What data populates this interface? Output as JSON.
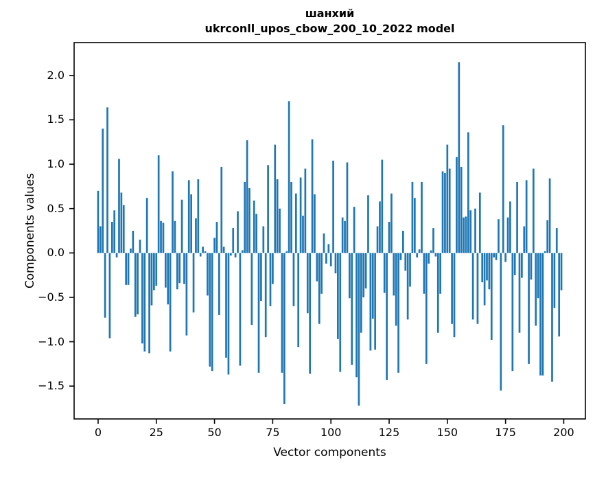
{
  "title_line1": "шанхий",
  "title_line2": "ukrconll_upos_cbow_200_10_2022 model",
  "xlabel": "Vector components",
  "ylabel": "Components values",
  "chart_data": {
    "type": "bar",
    "title": "шанхий\nukrconll_upos_cbow_200_10_2022 model",
    "xlabel": "Vector components",
    "ylabel": "Components values",
    "bar_color": "#1f77b4",
    "axis_color": "#000000",
    "grid": false,
    "legend": null,
    "x_ticks": [
      0,
      25,
      50,
      75,
      100,
      125,
      150,
      175,
      200
    ],
    "y_ticks": [
      -1.5,
      -1.0,
      -0.5,
      0.0,
      0.5,
      1.0,
      1.5,
      2.0
    ],
    "xlim": [
      -10.3,
      209.3
    ],
    "ylim": [
      -1.87,
      2.37
    ],
    "bar_width": 0.8,
    "values": [
      0.7,
      0.3,
      1.4,
      -0.73,
      1.64,
      -0.96,
      0.35,
      0.48,
      -0.05,
      1.06,
      0.68,
      0.54,
      -0.36,
      -0.36,
      0.05,
      0.25,
      -0.72,
      -0.69,
      0.15,
      -1.02,
      -1.11,
      0.62,
      -1.13,
      -0.59,
      -0.42,
      -0.37,
      1.1,
      0.36,
      0.34,
      -0.39,
      -0.58,
      -1.11,
      0.92,
      0.36,
      -0.41,
      -0.34,
      0.6,
      -0.35,
      -0.93,
      0.82,
      0.66,
      -0.67,
      0.39,
      0.83,
      -0.04,
      0.07,
      0.02,
      -0.48,
      -1.28,
      -1.33,
      0.17,
      0.35,
      -0.7,
      0.97,
      0.07,
      -1.18,
      -1.37,
      -0.03,
      0.28,
      -0.05,
      0.47,
      -1.27,
      0.03,
      0.8,
      1.27,
      0.73,
      -0.81,
      0.59,
      0.44,
      -1.35,
      -0.54,
      0.3,
      -0.95,
      0.99,
      -0.6,
      -0.35,
      1.22,
      0.83,
      0.5,
      -1.35,
      -1.7,
      0.02,
      1.71,
      0.8,
      -0.6,
      0.67,
      -1.06,
      0.85,
      0.42,
      0.95,
      -0.68,
      -1.36,
      1.28,
      0.66,
      -0.32,
      -0.8,
      -0.46,
      0.22,
      -0.12,
      0.1,
      -0.15,
      1.04,
      -0.23,
      -0.97,
      -1.34,
      0.4,
      0.36,
      1.02,
      -0.51,
      -1.26,
      0.52,
      -1.4,
      -1.72,
      -0.9,
      -0.5,
      -0.4,
      0.65,
      -1.1,
      -0.74,
      -1.09,
      0.3,
      0.58,
      1.05,
      -0.45,
      -1.43,
      0.35,
      0.67,
      -0.48,
      -0.82,
      -1.35,
      -0.08,
      0.25,
      -0.2,
      -0.75,
      -0.38,
      0.8,
      0.62,
      -0.05,
      0.04,
      0.8,
      -0.46,
      -1.25,
      -0.12,
      0.03,
      0.28,
      -0.04,
      -0.9,
      -0.46,
      0.92,
      0.9,
      1.22,
      0.95,
      -0.8,
      -0.95,
      1.08,
      2.15,
      0.97,
      0.4,
      0.41,
      1.36,
      0.48,
      -0.75,
      0.5,
      -0.8,
      0.68,
      -0.33,
      -0.59,
      -0.31,
      -0.41,
      -0.98,
      -0.05,
      -0.08,
      0.38,
      -1.55,
      1.44,
      -0.1,
      0.4,
      0.58,
      -1.33,
      -0.25,
      0.8,
      -0.9,
      -0.28,
      0.3,
      0.82,
      -1.25,
      -0.3,
      0.95,
      -0.82,
      -0.51,
      -1.38,
      -1.38,
      0.02,
      0.37,
      0.84,
      -1.45,
      -0.62,
      0.28,
      -0.94,
      -0.42
    ]
  }
}
